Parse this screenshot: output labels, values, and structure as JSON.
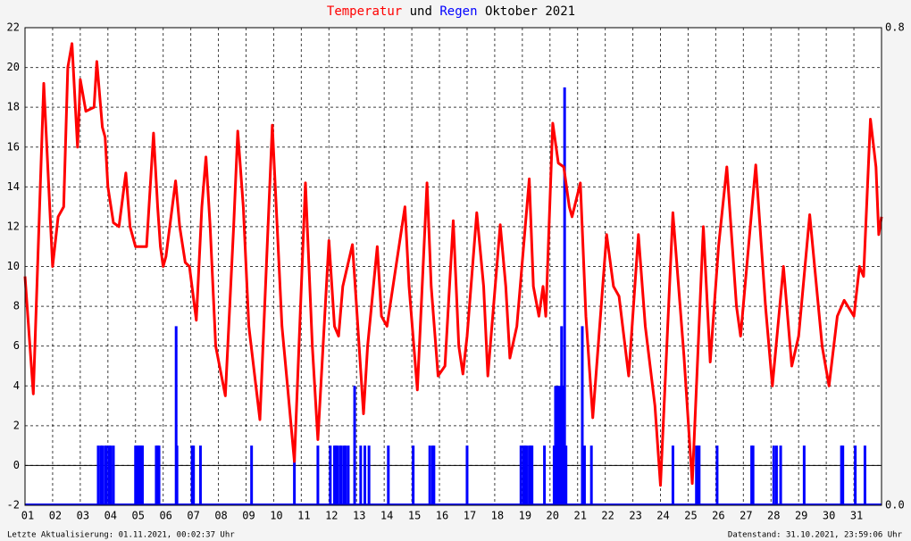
{
  "chart_data": {
    "type": "line-bar",
    "title_joiner": "und",
    "title_period": "Oktober 2021",
    "series": [
      {
        "name": "Temperatur",
        "color": "#ff0000",
        "axis": "y",
        "x": [
          1.0,
          1.3,
          1.68,
          2.0,
          2.2,
          2.4,
          2.55,
          2.7,
          2.9,
          3.0,
          3.2,
          3.5,
          3.6,
          3.8,
          3.9,
          4.0,
          4.2,
          4.4,
          4.65,
          4.8,
          5.0,
          5.2,
          5.4,
          5.65,
          5.8,
          5.9,
          6.0,
          6.1,
          6.45,
          6.6,
          6.8,
          6.95,
          7.2,
          7.4,
          7.55,
          7.7,
          7.9,
          8.25,
          8.55,
          8.7,
          8.9,
          9.1,
          9.5,
          9.95,
          10.3,
          10.5,
          10.75,
          11.15,
          11.4,
          11.6,
          12.0,
          12.2,
          12.35,
          12.5,
          12.85,
          13.0,
          13.25,
          13.4,
          13.75,
          13.9,
          14.1,
          14.75,
          14.9,
          15.2,
          15.55,
          15.7,
          15.95,
          16.2,
          16.5,
          16.7,
          16.85,
          17.0,
          17.35,
          17.6,
          17.75,
          18.2,
          18.4,
          18.55,
          18.8,
          19.25,
          19.4,
          19.6,
          19.75,
          19.85,
          20.1,
          20.3,
          20.5,
          20.7,
          20.8,
          21.1,
          21.3,
          21.55,
          22.05,
          22.3,
          22.5,
          22.85,
          23.2,
          23.45,
          23.8,
          24.0,
          24.45,
          24.85,
          25.15,
          25.55,
          25.8,
          26.1,
          26.4,
          26.75,
          26.9,
          27.45,
          27.8,
          28.05,
          28.45,
          28.75,
          29.0,
          29.4,
          29.85,
          30.1,
          30.4,
          30.65,
          31.0,
          31.2,
          31.35,
          31.6,
          31.8,
          31.9,
          32.0
        ],
        "values": [
          9.5,
          3.6,
          19.2,
          10,
          12.5,
          13,
          20,
          21.2,
          16,
          19.4,
          17.8,
          18,
          20.3,
          17,
          16.5,
          14,
          12.2,
          12,
          14.7,
          12,
          11,
          11,
          11,
          16.7,
          13,
          11,
          10,
          10.5,
          14.3,
          12,
          10.2,
          10,
          7.3,
          13,
          15.5,
          12,
          6,
          3.5,
          12,
          16.8,
          13,
          7,
          2.3,
          17.1,
          7,
          4,
          0.2,
          14.2,
          6,
          1.3,
          11.3,
          7,
          6.5,
          9,
          11.1,
          8,
          2.6,
          6,
          11,
          7.5,
          7,
          13,
          9,
          3.8,
          14.2,
          9,
          4.5,
          5,
          12.3,
          6,
          4.6,
          6.5,
          12.7,
          9,
          4.5,
          12.1,
          9,
          5.4,
          7,
          14.4,
          9,
          7.5,
          9,
          7.5,
          17.2,
          15.2,
          15,
          13,
          12.5,
          14.2,
          7.5,
          2.4,
          11.6,
          9,
          8.5,
          4.5,
          11.6,
          7,
          3,
          -1,
          12.7,
          5.5,
          -0.9,
          12,
          5.2,
          11,
          15,
          8,
          6.5,
          15.1,
          8,
          4,
          10,
          5,
          6.5,
          12.6,
          6,
          4,
          7.5,
          8.3,
          7.5,
          10,
          9.5,
          17.4,
          15,
          11.6,
          12.5
        ]
      },
      {
        "name": "Regen",
        "color": "#0000ff",
        "axis": "y2",
        "x": [
          3.65,
          3.75,
          3.8,
          3.9,
          3.95,
          4.05,
          4.1,
          4.2,
          5.0,
          5.05,
          5.1,
          5.15,
          5.2,
          5.25,
          5.75,
          5.8,
          5.85,
          6.47,
          6.5,
          7.05,
          7.1,
          7.35,
          9.2,
          10.75,
          11.6,
          12.05,
          12.2,
          12.25,
          12.3,
          12.4,
          12.45,
          12.55,
          12.6,
          12.7,
          12.93,
          13.15,
          13.3,
          13.45,
          14.15,
          15.05,
          15.65,
          15.75,
          15.8,
          17.0,
          18.95,
          19.05,
          19.1,
          19.15,
          19.25,
          19.3,
          19.35,
          19.8,
          20.15,
          20.2,
          20.28,
          20.35,
          20.42,
          20.48,
          20.53,
          20.58,
          21.17,
          21.25,
          21.5,
          24.45,
          25.3,
          25.35,
          25.4,
          26.05,
          27.3,
          27.35,
          28.1,
          28.2,
          28.35,
          29.2,
          30.55,
          30.6,
          31.05,
          31.4
        ],
        "values": [
          0.1,
          0.1,
          0.1,
          0.1,
          0.1,
          0.1,
          0.1,
          0.1,
          0.1,
          0.1,
          0.1,
          0.1,
          0.1,
          0.1,
          0.1,
          0.1,
          0.1,
          0.3,
          0.1,
          0.1,
          0.1,
          0.1,
          0.1,
          0.1,
          0.1,
          0.1,
          0.1,
          0.1,
          0.1,
          0.1,
          0.1,
          0.1,
          0.1,
          0.1,
          0.2,
          0.1,
          0.1,
          0.1,
          0.1,
          0.1,
          0.1,
          0.1,
          0.1,
          0.1,
          0.1,
          0.1,
          0.1,
          0.1,
          0.1,
          0.1,
          0.1,
          0.1,
          0.1,
          0.2,
          0.2,
          0.2,
          0.3,
          0.2,
          0.7,
          0.1,
          0.3,
          0.1,
          0.1,
          0.1,
          0.1,
          0.1,
          0.1,
          0.1,
          0.1,
          0.1,
          0.1,
          0.1,
          0.1,
          0.1,
          0.1,
          0.1,
          0.1,
          0.1
        ]
      }
    ],
    "xlim": [
      1,
      32
    ],
    "xticks": [
      {
        "value": 1,
        "label": "01"
      },
      {
        "value": 2,
        "label": "02"
      },
      {
        "value": 3,
        "label": "03"
      },
      {
        "value": 4,
        "label": "04"
      },
      {
        "value": 5,
        "label": "05"
      },
      {
        "value": 6,
        "label": "06"
      },
      {
        "value": 7,
        "label": "07"
      },
      {
        "value": 8,
        "label": "08"
      },
      {
        "value": 9,
        "label": "09"
      },
      10,
      11,
      12,
      13,
      14,
      15,
      16,
      17,
      18,
      19,
      20,
      21,
      22,
      23,
      24,
      25,
      26,
      27,
      28,
      29,
      30,
      31
    ],
    "ylim": [
      -2,
      22
    ],
    "yticks": [
      -2,
      0,
      2,
      4,
      6,
      8,
      10,
      12,
      14,
      16,
      18,
      20,
      22
    ],
    "y2lim": [
      0,
      0.8
    ],
    "y2ticks": [
      {
        "value": 0,
        "label": "0.0"
      },
      0.8
    ],
    "grid": true
  },
  "footer": {
    "left": "Letzte Aktualisierung: 01.11.2021, 00:02:37 Uhr",
    "right": "Datenstand: 31.10.2021, 23:59:06 Uhr"
  }
}
